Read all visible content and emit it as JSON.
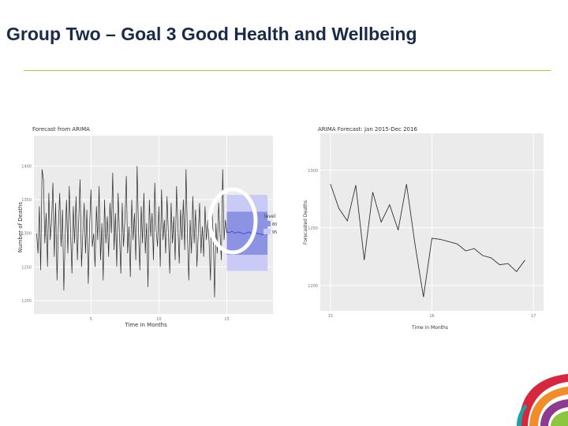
{
  "slide": {
    "title": "Group Two – Goal 3 Good Health and Wellbeing",
    "accent_color": "#b5c33a",
    "title_color": "#1a2b4a"
  },
  "chart_data": [
    {
      "type": "line",
      "title": "Forecast from ARIMA",
      "xlabel": "Time in Months",
      "ylabel": "Number of Deaths",
      "xlim": [
        0.8,
        18.4
      ],
      "ylim": [
        1180,
        1445
      ],
      "xticks": [
        5,
        10,
        15
      ],
      "yticks": [
        1200,
        1250,
        1300,
        1350,
        1400
      ],
      "grid": true,
      "legend": {
        "title": "level",
        "position": "right",
        "entries": [
          "80",
          "95"
        ]
      },
      "series": [
        {
          "x": [
            1.0,
            1.1,
            1.2,
            1.3,
            1.4,
            1.5,
            1.6,
            1.7,
            1.8,
            1.9,
            2.0,
            2.1,
            2.2,
            2.3,
            2.4,
            2.5,
            2.6,
            2.7,
            2.8,
            2.9,
            3.0,
            3.1,
            3.2,
            3.3,
            3.4,
            3.5,
            3.6,
            3.7,
            3.8,
            3.9,
            4.0,
            4.1,
            4.2,
            4.3,
            4.4,
            4.5,
            4.6,
            4.7,
            4.8,
            4.9,
            5.0,
            5.1,
            5.2,
            5.3,
            5.4,
            5.5,
            5.6,
            5.7,
            5.8,
            5.9,
            6.0,
            6.1,
            6.2,
            6.3,
            6.4,
            6.5,
            6.6,
            6.7,
            6.8,
            6.9,
            7.0,
            7.1,
            7.2,
            7.3,
            7.4,
            7.5,
            7.6,
            7.7,
            7.8,
            7.9,
            8.0,
            8.1,
            8.2,
            8.3,
            8.4,
            8.5,
            8.6,
            8.7,
            8.8,
            8.9,
            9.0,
            9.1,
            9.2,
            9.3,
            9.4,
            9.5,
            9.6,
            9.7,
            9.8,
            9.9,
            10.0,
            10.1,
            10.2,
            10.3,
            10.4,
            10.5,
            10.6,
            10.7,
            10.8,
            10.9,
            11.0,
            11.1,
            11.2,
            11.3,
            11.4,
            11.5,
            11.6,
            11.7,
            11.8,
            11.9,
            12.0,
            12.1,
            12.2,
            12.3,
            12.4,
            12.5,
            12.6,
            12.7,
            12.8,
            12.9,
            13.0,
            13.1,
            13.2,
            13.3,
            13.4,
            13.5,
            13.6,
            13.7,
            13.8,
            13.9,
            14.0,
            14.1,
            14.2,
            14.3,
            14.4,
            14.5,
            14.6,
            14.7,
            14.8,
            14.9,
            15.0
          ],
          "values": [
            1300,
            1270,
            1340,
            1245,
            1395,
            1380,
            1285,
            1330,
            1250,
            1360,
            1290,
            1320,
            1375,
            1265,
            1345,
            1230,
            1310,
            1360,
            1280,
            1335,
            1215,
            1295,
            1350,
            1270,
            1370,
            1300,
            1240,
            1340,
            1285,
            1355,
            1260,
            1320,
            1380,
            1250,
            1300,
            1345,
            1270,
            1335,
            1225,
            1310,
            1365,
            1280,
            1300,
            1250,
            1340,
            1290,
            1370,
            1260,
            1315,
            1230,
            1350,
            1285,
            1325,
            1265,
            1345,
            1300,
            1390,
            1275,
            1330,
            1250,
            1360,
            1295,
            1240,
            1345,
            1280,
            1320,
            1385,
            1270,
            1310,
            1235,
            1350,
            1290,
            1330,
            1260,
            1400,
            1300,
            1245,
            1340,
            1285,
            1360,
            1270,
            1315,
            1220,
            1350,
            1295,
            1330,
            1260,
            1375,
            1305,
            1280,
            1340,
            1250,
            1365,
            1290,
            1320,
            1270,
            1355,
            1300,
            1240,
            1345,
            1285,
            1325,
            1260,
            1370,
            1310,
            1255,
            1335,
            1290,
            1350,
            1275,
            1395,
            1300,
            1230,
            1320,
            1270,
            1355,
            1285,
            1335,
            1250,
            1300,
            1345,
            1270,
            1310,
            1265,
            1340,
            1290,
            1320,
            1285,
            1230,
            1340,
            1295,
            1205,
            1315,
            1270,
            1345,
            1300,
            1260,
            1395,
            1290,
            1320,
            1300
          ]
        }
      ],
      "forecast": {
        "x": [
          15.0,
          15.2,
          15.4,
          15.6,
          15.8,
          16.0,
          16.2,
          16.4,
          16.6,
          16.8,
          17.0,
          17.2,
          17.4,
          17.6,
          17.8,
          18.0
        ],
        "mean": [
          1302,
          1301,
          1303,
          1300,
          1302,
          1301,
          1299,
          1300,
          1302,
          1300,
          1299,
          1300,
          1299,
          1298,
          1299,
          1298
        ],
        "lo80": 1268,
        "hi80": 1332,
        "lo95": 1244,
        "hi95": 1357
      },
      "series_colors": {
        "history": "#2a2a2a",
        "forecast": "#2f3fd0",
        "band80": "#8d93e3",
        "band95": "#c9cbf6"
      }
    },
    {
      "type": "line",
      "title": "ARIMA Forecast: Jan 2015-Dec 2016",
      "xlabel": "Time in Months",
      "ylabel": "Forecasted Deaths",
      "xlim": [
        14.9,
        17.1
      ],
      "ylim": [
        1178,
        1332
      ],
      "xticks": [
        15,
        16,
        17
      ],
      "yticks": [
        1200,
        1250,
        1300
      ],
      "grid": true,
      "series": [
        {
          "x": [
            15.0,
            15.083,
            15.167,
            15.25,
            15.333,
            15.417,
            15.5,
            15.583,
            15.667,
            15.75,
            15.833,
            15.917,
            16.0,
            16.083,
            16.167,
            16.25,
            16.333,
            16.417,
            16.5,
            16.583,
            16.667,
            16.75,
            16.833,
            16.917
          ],
          "values": [
            1288,
            1267,
            1256,
            1287,
            1222,
            1281,
            1255,
            1270,
            1248,
            1288,
            1236,
            1190,
            1241,
            1240,
            1238,
            1236,
            1230,
            1232,
            1226,
            1224,
            1218,
            1219,
            1212,
            1222
          ]
        }
      ]
    }
  ]
}
